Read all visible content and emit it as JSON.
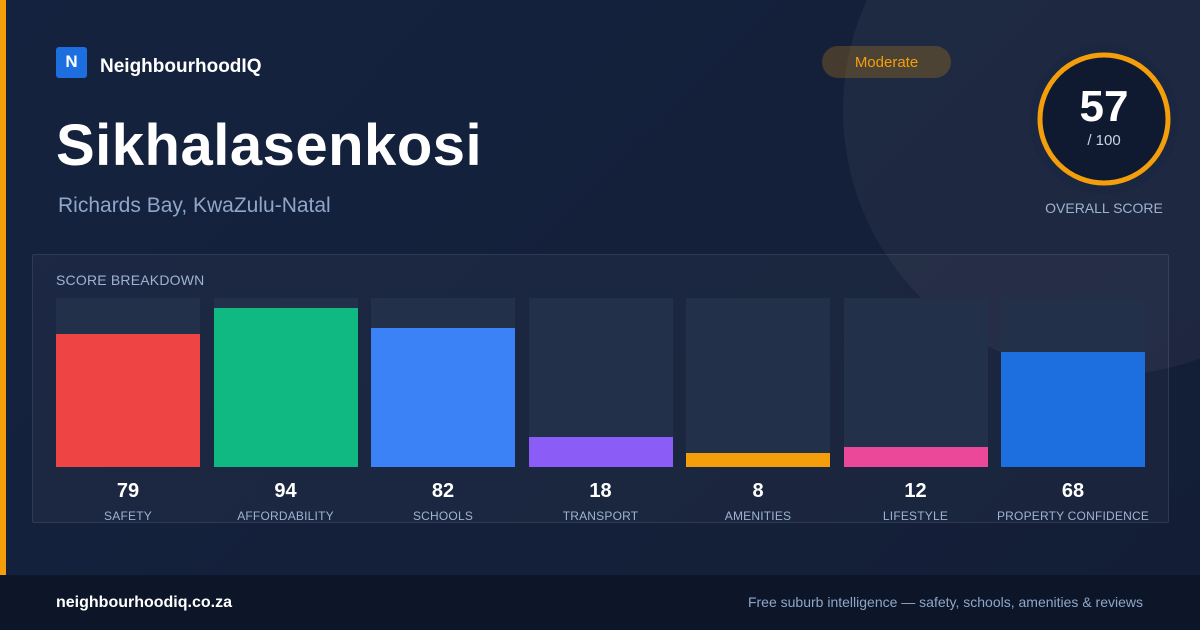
{
  "brand": {
    "logo_letter": "N",
    "name": "NeighbourhoodIQ",
    "accent_color": "#f59e0b",
    "logo_color": "#1d6fe0"
  },
  "suburb": {
    "name": "Sikhalasenkosi",
    "location": "Richards Bay, KwaZulu-Natal"
  },
  "rating_badge": {
    "label": "Moderate"
  },
  "overall_score": {
    "value": "57",
    "max_label": "/ 100",
    "caption": "OVERALL SCORE",
    "fraction": 0.57
  },
  "breakdown": {
    "title": "SCORE BREAKDOWN",
    "items": [
      {
        "label": "SAFETY",
        "value": "79",
        "color": "#ef4444"
      },
      {
        "label": "AFFORDABILITY",
        "value": "94",
        "color": "#10b981"
      },
      {
        "label": "SCHOOLS",
        "value": "82",
        "color": "#3b82f6"
      },
      {
        "label": "TRANSPORT",
        "value": "18",
        "color": "#8b5cf6"
      },
      {
        "label": "AMENITIES",
        "value": "8",
        "color": "#f59e0b"
      },
      {
        "label": "LIFESTYLE",
        "value": "12",
        "color": "#ec4899"
      },
      {
        "label": "PROPERTY CONFIDENCE",
        "value": "68",
        "color": "#1d6fe0"
      }
    ]
  },
  "chart_data": {
    "type": "bar",
    "categories": [
      "SAFETY",
      "AFFORDABILITY",
      "SCHOOLS",
      "TRANSPORT",
      "AMENITIES",
      "LIFESTYLE",
      "PROPERTY CONFIDENCE"
    ],
    "values": [
      79,
      94,
      82,
      18,
      8,
      12,
      68
    ],
    "title": "SCORE BREAKDOWN",
    "ylim": [
      0,
      100
    ],
    "grid": false
  },
  "footer": {
    "domain": "neighbourhoodiq.co.za",
    "tagline": "Free suburb intelligence — safety, schools, amenities & reviews"
  }
}
